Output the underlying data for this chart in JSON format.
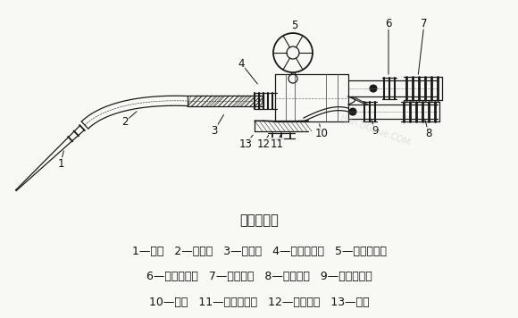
{
  "title": "焊炬的构造",
  "background_color": "#f5f5f0",
  "legend_lines": [
    "1—焊嘴   2—混合管   3—射吸管   4—射吸管螺母   5—乙炔调节阀",
    "6—乙炔进气管   7—乙炔接头   8—氧气接头   9—氧气进气管",
    "10—手柄   11—氧气调节阀   12—氧气阀针   13—喷嘴"
  ],
  "title_fontsize": 10.5,
  "legend_fontsize": 9.0,
  "fig_width": 5.8,
  "fig_height": 3.56,
  "dpi": 100
}
